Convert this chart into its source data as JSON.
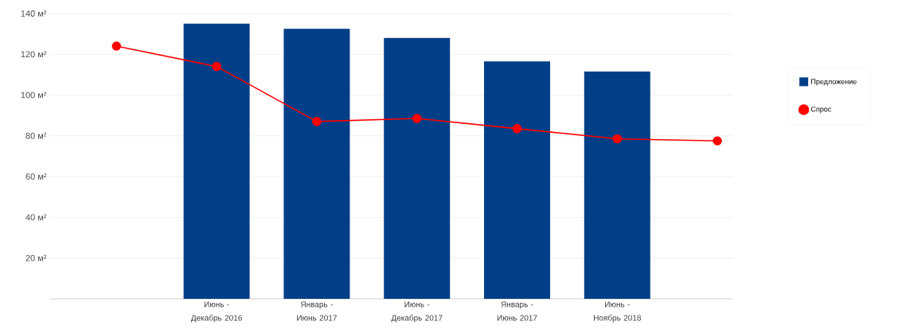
{
  "chart_data": {
    "type": "bar",
    "categories": [
      null,
      "Июнь - Декабрь 2016",
      "Январь - Июнь 2017",
      "Июнь - Декабрь 2017",
      "Январь - Июнь 2017",
      "Июнь - Ноябрь 2018",
      null
    ],
    "series": [
      {
        "name": "Предложение",
        "color": "#003f87",
        "values": [
          null,
          135,
          132.5,
          128,
          116.5,
          111.5,
          null
        ]
      },
      {
        "name": "Спрос",
        "type": "line",
        "color": "#ff0000",
        "values": [
          124,
          114,
          87,
          88.5,
          83.5,
          78.5,
          77.5
        ]
      }
    ],
    "ylim": [
      0,
      140
    ],
    "yticks": [
      {
        "value": 20,
        "label": "20 м²"
      },
      {
        "value": 40,
        "label": "40 м²"
      },
      {
        "value": 60,
        "label": "60 м²"
      },
      {
        "value": 80,
        "label": "80 м²"
      },
      {
        "value": 100,
        "label": "100 м²"
      },
      {
        "value": 120,
        "label": "120 м²"
      },
      {
        "value": 140,
        "label": "140 м²"
      }
    ],
    "grid": "y",
    "legend": "right",
    "marker": "circle",
    "line_style": "solid"
  }
}
